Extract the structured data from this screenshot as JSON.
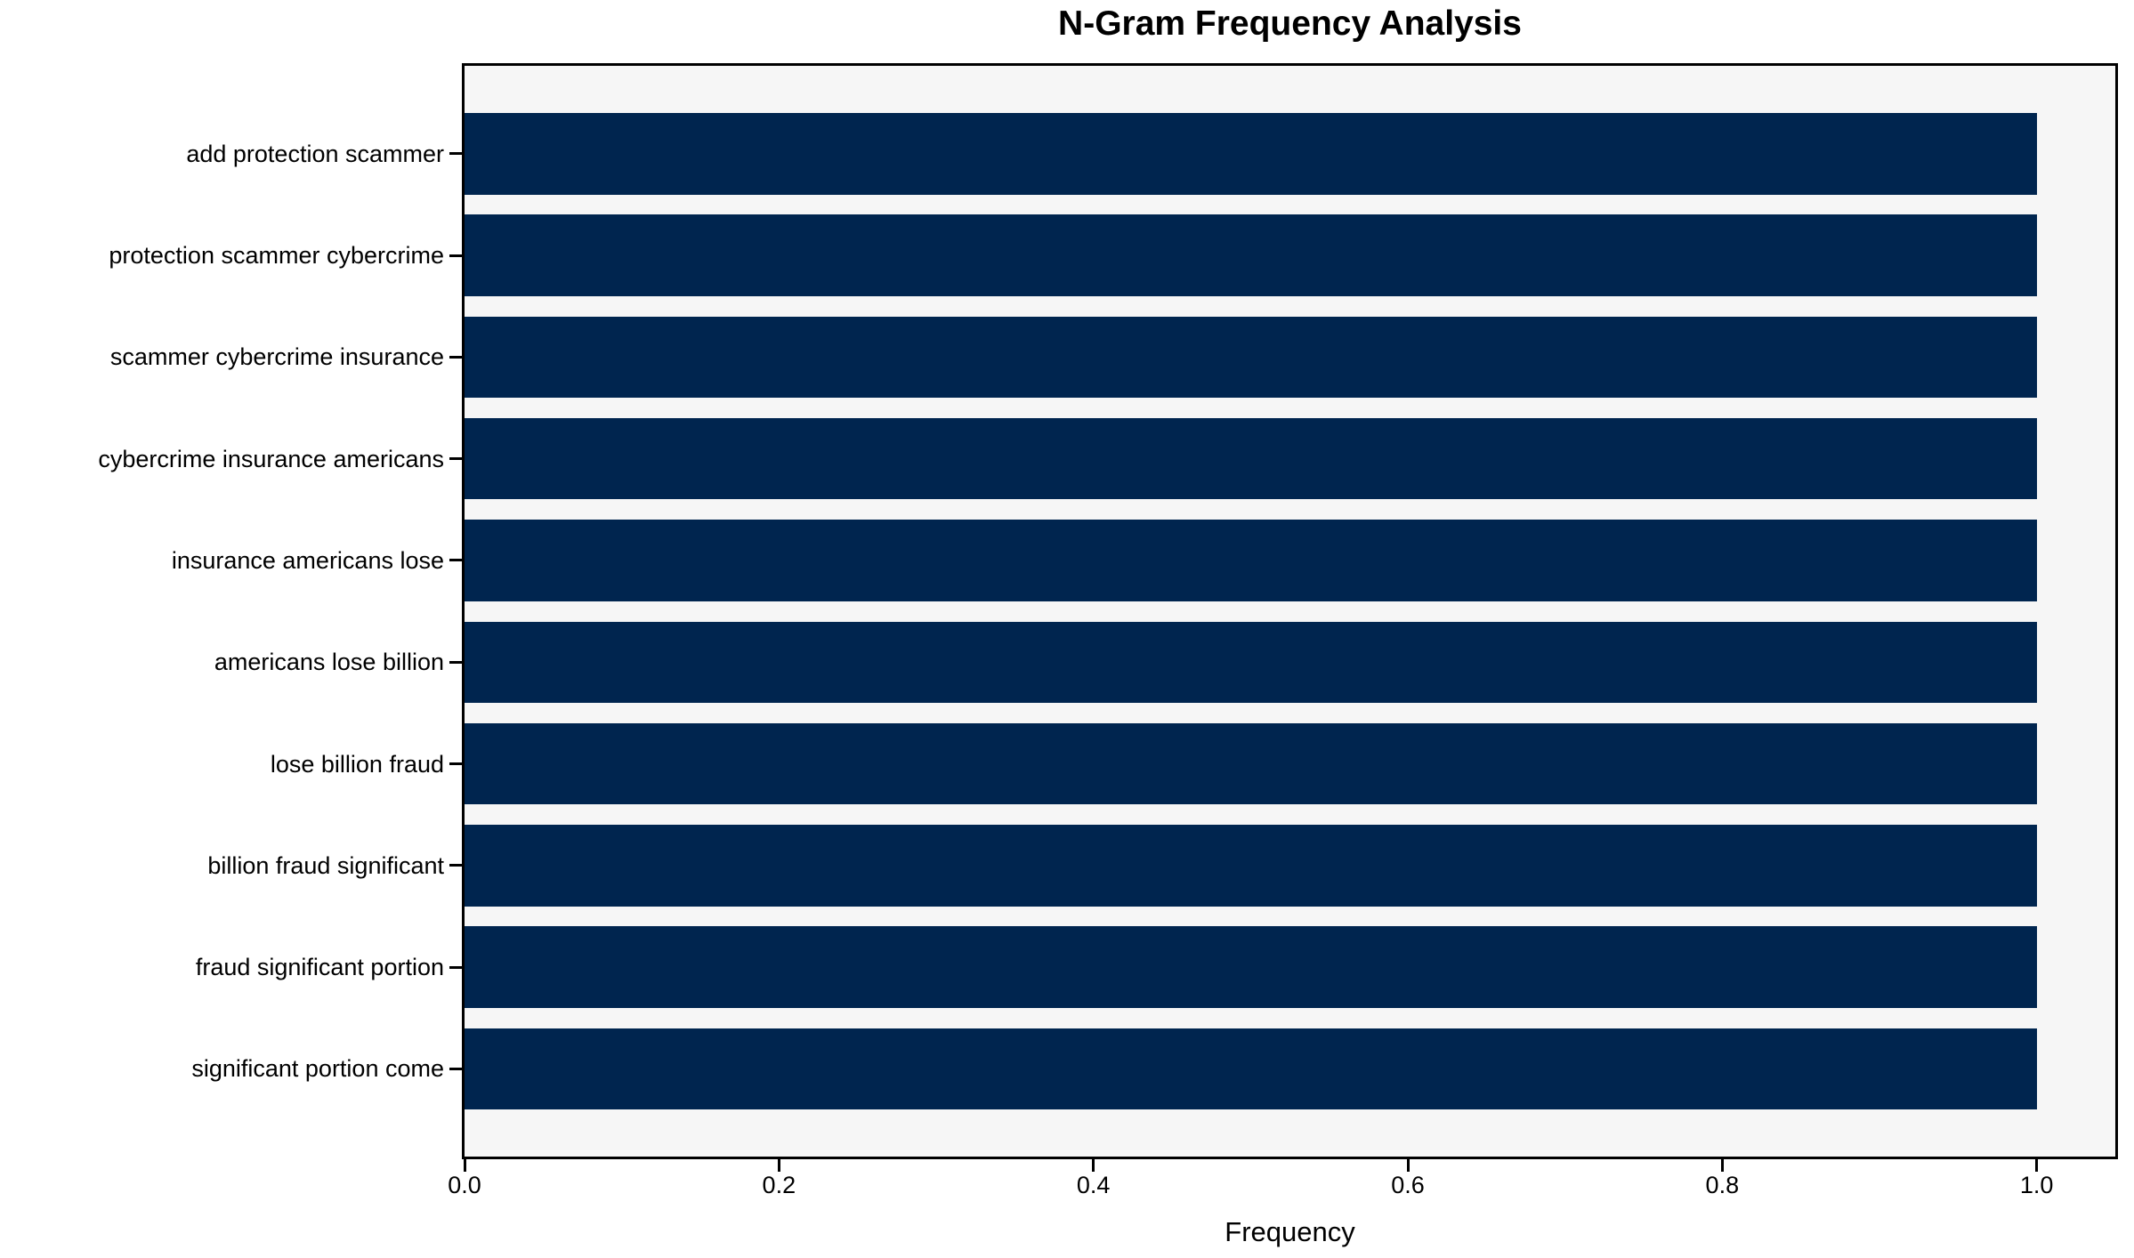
{
  "chart_data": {
    "type": "bar",
    "orientation": "horizontal",
    "title": "N-Gram Frequency Analysis",
    "xlabel": "Frequency",
    "ylabel": "",
    "categories": [
      "add protection scammer",
      "protection scammer cybercrime",
      "scammer cybercrime insurance",
      "cybercrime insurance americans",
      "insurance americans lose",
      "americans lose billion",
      "lose billion fraud",
      "billion fraud significant",
      "fraud significant portion",
      "significant portion come"
    ],
    "values": [
      1.0,
      1.0,
      1.0,
      1.0,
      1.0,
      1.0,
      1.0,
      1.0,
      1.0,
      1.0
    ],
    "x_ticks": [
      0.0,
      0.2,
      0.4,
      0.6,
      0.8,
      1.0
    ],
    "x_tick_labels": [
      "0.0",
      "0.2",
      "0.4",
      "0.6",
      "0.8",
      "1.0"
    ],
    "xlim": [
      0,
      1.05
    ],
    "grid": false,
    "legend": null,
    "colors": {
      "bar": "#00254f",
      "plot_background": "#f6f6f6",
      "figure_background": "#ffffff",
      "spine": "#000000",
      "text": "#000000"
    }
  }
}
